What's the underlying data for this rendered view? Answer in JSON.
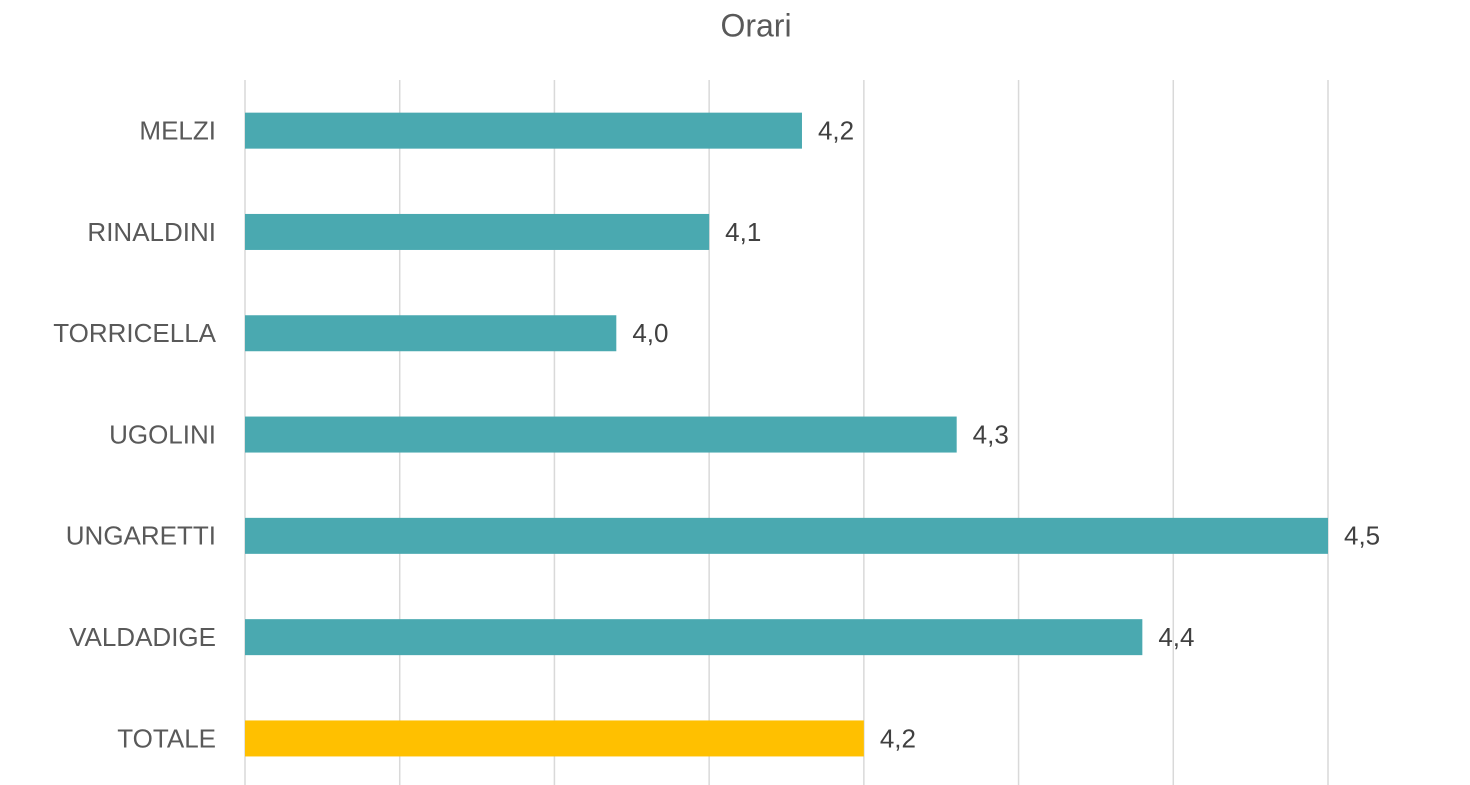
{
  "chart_data": {
    "type": "bar",
    "orientation": "horizontal",
    "title": "Orari",
    "categories": [
      "MELZI",
      "RINALDINI",
      "TORRICELLA",
      "UGOLINI",
      "UNGARETTI",
      "VALDADIGE",
      "TOTALE"
    ],
    "values": [
      4.16,
      4.1,
      4.04,
      4.26,
      4.5,
      4.38,
      4.2
    ],
    "value_labels": [
      "4,2",
      "4,1",
      "4,0",
      "4,3",
      "4,5",
      "4,4",
      "4,2"
    ],
    "colors": [
      "#4aa9b0",
      "#4aa9b0",
      "#4aa9b0",
      "#4aa9b0",
      "#4aa9b0",
      "#4aa9b0",
      "#ffc000"
    ],
    "xlim": [
      3.8,
      4.5
    ],
    "xticks": [
      3.8,
      3.9,
      4.0,
      4.1,
      4.2,
      4.3,
      4.4,
      4.5
    ],
    "grid": true
  }
}
